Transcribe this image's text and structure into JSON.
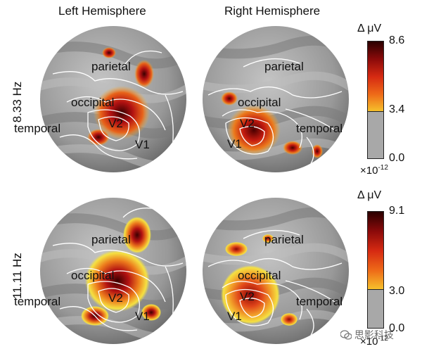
{
  "columns": [
    "Left Hemisphere",
    "Right Hemisphere"
  ],
  "rows": [
    {
      "label": "8.33 Hz",
      "left_regions": [
        "parietal",
        "occipital",
        "temporal",
        "V2",
        "V1"
      ],
      "right_regions": [
        "parietal",
        "occipital",
        "temporal",
        "V2",
        "V1"
      ],
      "colorbar": {
        "title": "Δ μV",
        "max": "8.6",
        "threshold": "3.4",
        "min": "0.0",
        "exponent": "×10",
        "exponent_power": "-12",
        "threshold_fraction": 0.395
      }
    },
    {
      "label": "11.11 Hz",
      "left_regions": [
        "parietal",
        "occipital",
        "temporal",
        "V2",
        "V1"
      ],
      "right_regions": [
        "parietal",
        "occipital",
        "temporal",
        "V2",
        "V1"
      ],
      "colorbar": {
        "title": "Δ μV",
        "max": "9.1",
        "threshold": "3.0",
        "min": "0.0",
        "exponent": "×10",
        "exponent_power": "-12",
        "threshold_fraction": 0.33
      }
    }
  ],
  "colors": {
    "cortex_gyrus": "#8f8f8f",
    "cortex_sulcus": "#b9b9b9",
    "activation_low": "#f5e142",
    "activation_mid": "#e8631a",
    "activation_high": "#3a0000",
    "contour": "#ffffff",
    "below_threshold": "#a8a8a8"
  },
  "watermark": "思影科技"
}
